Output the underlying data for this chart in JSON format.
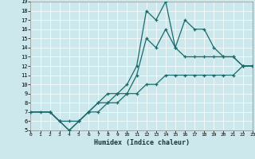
{
  "xlabel": "Humidex (Indice chaleur)",
  "bg_color": "#cde8ec",
  "line_color": "#1a6b6b",
  "grid_color": "#ffffff",
  "xlim": [
    0,
    23
  ],
  "ylim": [
    5,
    19
  ],
  "xticks": [
    0,
    1,
    2,
    3,
    4,
    5,
    6,
    7,
    8,
    9,
    10,
    11,
    12,
    13,
    14,
    15,
    16,
    17,
    18,
    19,
    20,
    21,
    22,
    23
  ],
  "yticks": [
    5,
    6,
    7,
    8,
    9,
    10,
    11,
    12,
    13,
    14,
    15,
    16,
    17,
    18,
    19
  ],
  "line1_x": [
    0,
    1,
    2,
    3,
    4,
    5,
    6,
    7,
    8,
    9,
    10,
    11,
    12,
    13,
    14,
    15,
    16,
    17,
    18,
    19,
    20,
    21,
    22,
    23
  ],
  "line1_y": [
    7,
    7,
    7,
    6,
    5,
    6,
    7,
    8,
    9,
    9,
    10,
    12,
    18,
    17,
    19,
    14,
    17,
    16,
    16,
    14,
    13,
    13,
    12,
    12
  ],
  "line1_markers": [
    0,
    1,
    2,
    3,
    4,
    5,
    6,
    7,
    8,
    9,
    10,
    11,
    12,
    13,
    14,
    15,
    16,
    17,
    18,
    19,
    20,
    21,
    22,
    23
  ],
  "line2_x": [
    0,
    2,
    3,
    4,
    5,
    6,
    7,
    8,
    9,
    10,
    11,
    12,
    13,
    14,
    15,
    16,
    17,
    18,
    19,
    20,
    21,
    22,
    23
  ],
  "line2_y": [
    7,
    7,
    6,
    5,
    6,
    7,
    8,
    8,
    9,
    9,
    11,
    15,
    14,
    16,
    14,
    13,
    13,
    13,
    13,
    13,
    13,
    12,
    12
  ],
  "line3_x": [
    0,
    2,
    3,
    4,
    5,
    6,
    7,
    8,
    9,
    10,
    11,
    12,
    13,
    14,
    15,
    16,
    17,
    18,
    19,
    20,
    21,
    22,
    23
  ],
  "line3_y": [
    7,
    7,
    6,
    6,
    6,
    7,
    7,
    8,
    8,
    9,
    9,
    10,
    10,
    11,
    11,
    11,
    11,
    11,
    11,
    11,
    11,
    12,
    12
  ]
}
